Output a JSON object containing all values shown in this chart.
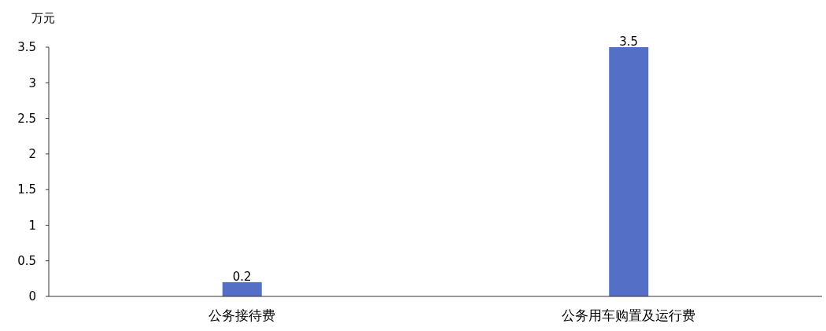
{
  "chart_data": {
    "type": "bar",
    "ylabel": "万元",
    "categories": [
      "公务接待费",
      "公务用车购置及运行费"
    ],
    "values": [
      0.2,
      3.5
    ],
    "color": "#5470c6",
    "ylim": [
      0,
      3.5
    ],
    "yticks": [
      0,
      0.5,
      1,
      1.5,
      2,
      2.5,
      3,
      3.5
    ],
    "grid": false,
    "data_labels": true
  }
}
